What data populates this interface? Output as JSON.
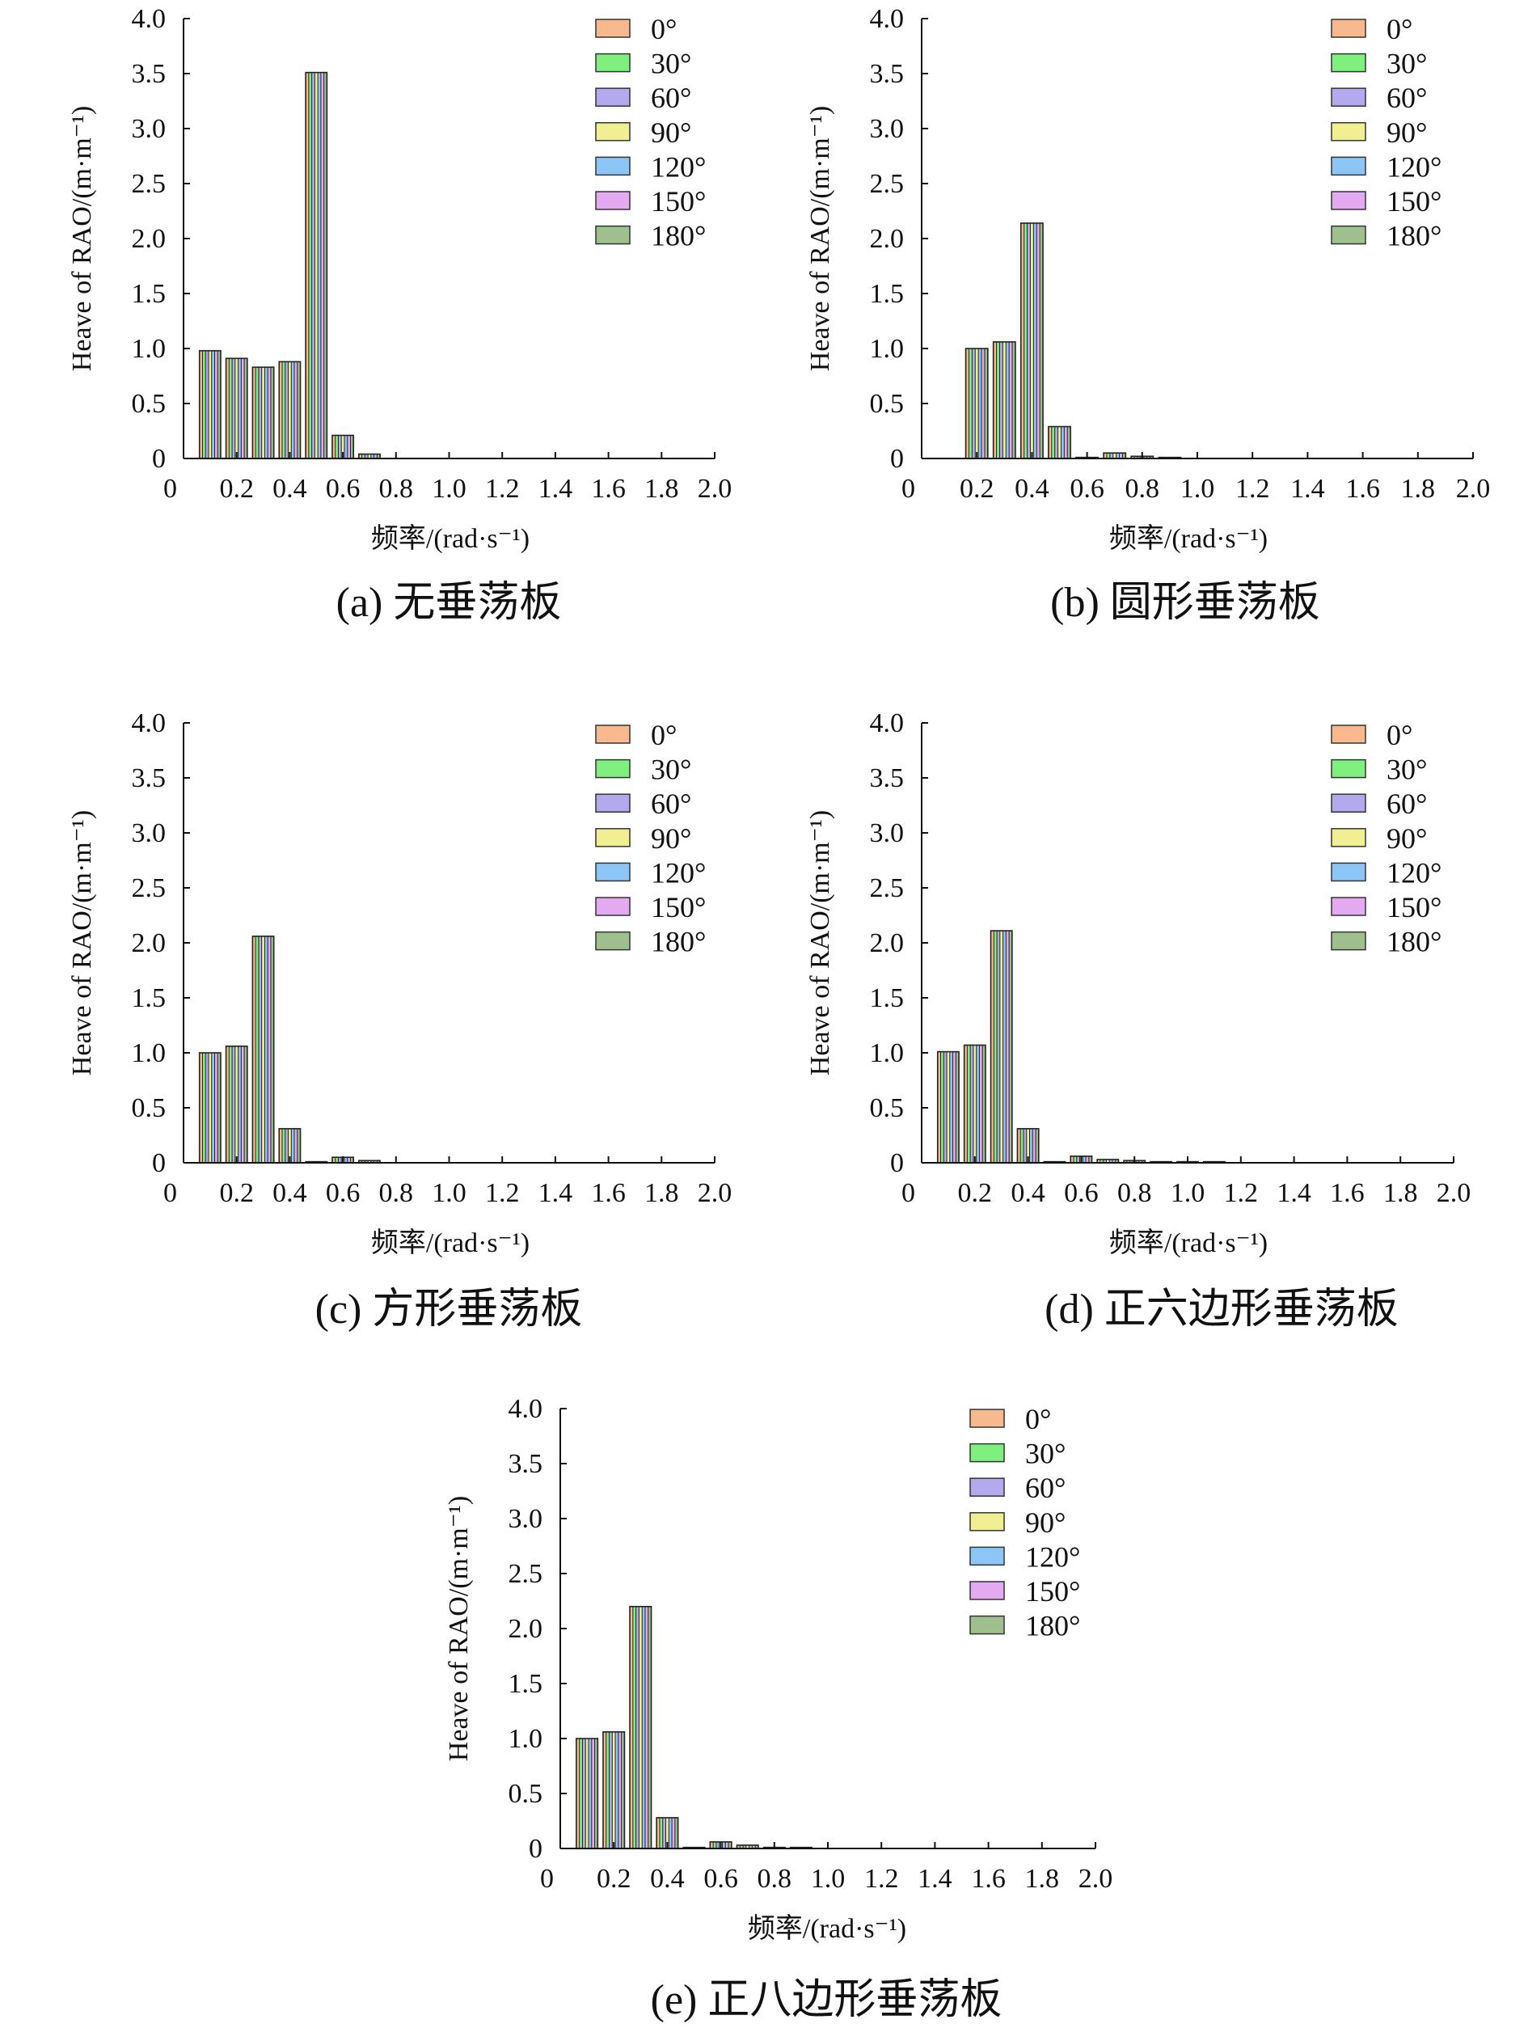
{
  "figure_captions": [
    "(a) 无垂荡板",
    "(b) 圆形垂荡板",
    "(c) 方形垂荡板",
    "(d) 正六边形垂荡板",
    "(e) 正八边形垂荡板"
  ],
  "chart_data": [
    {
      "type": "bar",
      "panel": "a",
      "caption": "(a) 无垂荡板",
      "xlabel": "频率/(rad·s⁻¹)",
      "ylabel": "Heave of RAO/(m·m⁻¹)",
      "xlim": [
        0,
        2.0
      ],
      "ylim": [
        0,
        4.0
      ],
      "xticks": [
        "0",
        "0.2",
        "0.4",
        "0.6",
        "0.8",
        "1.0",
        "1.2",
        "1.4",
        "1.6",
        "1.8",
        "2.0"
      ],
      "yticks": [
        "0",
        "0.5",
        "1.0",
        "1.5",
        "2.0",
        "2.5",
        "3.0",
        "3.5",
        "4.0"
      ],
      "legend_position": "top-right",
      "series_names": [
        "0°",
        "30°",
        "60°",
        "90°",
        "120°",
        "150°",
        "180°"
      ],
      "series_colors": [
        "#f9b98e",
        "#7fef7f",
        "#b3aaee",
        "#f0f092",
        "#8cc6f7",
        "#e3aaf2",
        "#9fbf8f"
      ],
      "x": [
        0.1,
        0.2,
        0.3,
        0.4,
        0.5,
        0.6,
        0.7
      ],
      "values": [
        0.98,
        0.91,
        0.83,
        0.88,
        3.51,
        0.21,
        0.04
      ]
    },
    {
      "type": "bar",
      "panel": "b",
      "caption": "(b) 圆形垂荡板",
      "xlabel": "频率/(rad·s⁻¹)",
      "ylabel": "Heave of RAO/(m·m⁻¹)",
      "xlim": [
        0,
        2.0
      ],
      "ylim": [
        0,
        4.0
      ],
      "xticks": [
        "0",
        "0.2",
        "0.4",
        "0.6",
        "0.8",
        "1.0",
        "1.2",
        "1.4",
        "1.6",
        "1.8",
        "2.0"
      ],
      "yticks": [
        "0",
        "0.5",
        "1.0",
        "1.5",
        "2.0",
        "2.5",
        "3.0",
        "3.5",
        "4.0"
      ],
      "legend_position": "top-right",
      "series_names": [
        "0°",
        "30°",
        "60°",
        "90°",
        "120°",
        "150°",
        "180°"
      ],
      "series_colors": [
        "#f9b98e",
        "#7fef7f",
        "#b3aaee",
        "#f0f092",
        "#8cc6f7",
        "#e3aaf2",
        "#9fbf8f"
      ],
      "x": [
        0.2,
        0.3,
        0.4,
        0.5,
        0.6,
        0.7,
        0.8,
        0.9
      ],
      "values": [
        1.0,
        1.06,
        2.14,
        0.29,
        0.01,
        0.05,
        0.02,
        0.01
      ]
    },
    {
      "type": "bar",
      "panel": "c",
      "caption": "(c) 方形垂荡板",
      "xlabel": "频率/(rad·s⁻¹)",
      "ylabel": "Heave of RAO/(m·m⁻¹)",
      "xlim": [
        0,
        2.0
      ],
      "ylim": [
        0,
        4.0
      ],
      "xticks": [
        "0",
        "0.2",
        "0.4",
        "0.6",
        "0.8",
        "1.0",
        "1.2",
        "1.4",
        "1.6",
        "1.8",
        "2.0"
      ],
      "yticks": [
        "0",
        "0.5",
        "1.0",
        "1.5",
        "2.0",
        "2.5",
        "3.0",
        "3.5",
        "4.0"
      ],
      "legend_position": "top-right",
      "series_names": [
        "0°",
        "30°",
        "60°",
        "90°",
        "120°",
        "150°",
        "180°"
      ],
      "series_colors": [
        "#f9b98e",
        "#7fef7f",
        "#b3aaee",
        "#f0f092",
        "#8cc6f7",
        "#e3aaf2",
        "#9fbf8f"
      ],
      "x": [
        0.1,
        0.2,
        0.3,
        0.4,
        0.5,
        0.6,
        0.7
      ],
      "values": [
        1.0,
        1.06,
        2.06,
        0.31,
        0.01,
        0.05,
        0.02
      ]
    },
    {
      "type": "bar",
      "panel": "d",
      "caption": "(d) 正六边形垂荡板",
      "xlabel": "频率/(rad·s⁻¹)",
      "ylabel": "Heave of RAO/(m·m⁻¹)",
      "xlim": [
        0,
        2.0
      ],
      "ylim": [
        0,
        4.0
      ],
      "xticks": [
        "0",
        "0.2",
        "0.4",
        "0.6",
        "0.8",
        "1.0",
        "1.2",
        "1.4",
        "1.6",
        "1.8",
        "2.0"
      ],
      "yticks": [
        "0",
        "0.5",
        "1.0",
        "1.5",
        "2.0",
        "2.5",
        "3.0",
        "3.5",
        "4.0"
      ],
      "legend_position": "top-right",
      "series_names": [
        "0°",
        "30°",
        "60°",
        "90°",
        "120°",
        "150°",
        "180°"
      ],
      "series_colors": [
        "#f9b98e",
        "#7fef7f",
        "#b3aaee",
        "#f0f092",
        "#8cc6f7",
        "#e3aaf2",
        "#9fbf8f"
      ],
      "x": [
        0.1,
        0.2,
        0.3,
        0.4,
        0.5,
        0.6,
        0.7,
        0.8,
        0.9,
        1.0,
        1.1
      ],
      "values": [
        1.01,
        1.07,
        2.11,
        0.31,
        0.01,
        0.06,
        0.03,
        0.02,
        0.01,
        0.01,
        0.01
      ]
    },
    {
      "type": "bar",
      "panel": "e",
      "caption": "(e) 正八边形垂荡板",
      "xlabel": "频率/(rad·s⁻¹)",
      "ylabel": "Heave of RAO/(m·m⁻¹)",
      "xlim": [
        0,
        2.0
      ],
      "ylim": [
        0,
        4.0
      ],
      "xticks": [
        "0",
        "0.2",
        "0.4",
        "0.6",
        "0.8",
        "1.0",
        "1.2",
        "1.4",
        "1.6",
        "1.8",
        "2.0"
      ],
      "yticks": [
        "0",
        "0.5",
        "1.0",
        "1.5",
        "2.0",
        "2.5",
        "3.0",
        "3.5",
        "4.0"
      ],
      "legend_position": "top-right",
      "series_names": [
        "0°",
        "30°",
        "60°",
        "90°",
        "120°",
        "150°",
        "180°"
      ],
      "series_colors": [
        "#f9b98e",
        "#7fef7f",
        "#b3aaee",
        "#f0f092",
        "#8cc6f7",
        "#e3aaf2",
        "#9fbf8f"
      ],
      "x": [
        0.1,
        0.2,
        0.3,
        0.4,
        0.5,
        0.6,
        0.7,
        0.8,
        0.9
      ],
      "values": [
        1.0,
        1.06,
        2.2,
        0.28,
        0.01,
        0.06,
        0.03,
        0.01,
        0.01
      ]
    }
  ]
}
